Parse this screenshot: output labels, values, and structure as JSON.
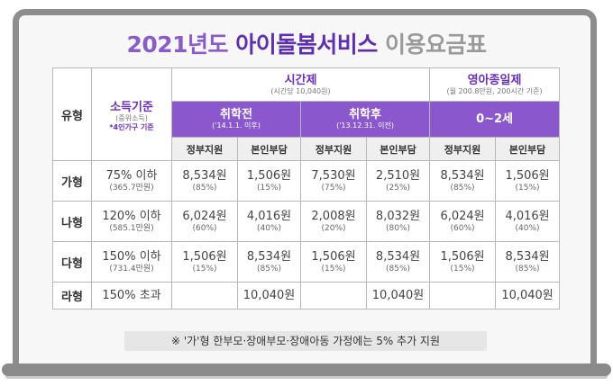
{
  "title": {
    "part1": "2021년도",
    "part2": "아이돌봄서비스",
    "part3": "이용요금표"
  },
  "headers": {
    "type": "유형",
    "income": {
      "label": "소득기준",
      "sub": "(중위소득)",
      "note": "*4인가구 기준"
    },
    "hourly": {
      "label": "시간제",
      "sub": "(시간당 10,040원)"
    },
    "infant": {
      "label": "영아종일제",
      "sub": "(월 200.8만원, 200시간 기준)"
    },
    "preschool": {
      "label": "취학전",
      "sub": "('14.1.1. 이후)"
    },
    "school": {
      "label": "취학후",
      "sub": "('13.12.31. 이전)"
    },
    "age": {
      "label": "0~2세"
    },
    "gov": "정부지원",
    "self": "본인부담"
  },
  "rows": [
    {
      "type": "가형",
      "income": "75% 이하",
      "income_sub": "(365.7만원)",
      "c1": "8,534원",
      "c1s": "(85%)",
      "c2": "1,506원",
      "c2s": "(15%)",
      "c3": "7,530원",
      "c3s": "(75%)",
      "c4": "2,510원",
      "c4s": "(25%)",
      "c5": "8,534원",
      "c5s": "(85%)",
      "c6": "1,506원",
      "c6s": "(15%)"
    },
    {
      "type": "나형",
      "income": "120% 이하",
      "income_sub": "(585.1만원)",
      "c1": "6,024원",
      "c1s": "(60%)",
      "c2": "4,016원",
      "c2s": "(40%)",
      "c3": "2,008원",
      "c3s": "(20%)",
      "c4": "8,032원",
      "c4s": "(80%)",
      "c5": "6,024원",
      "c5s": "(60%)",
      "c6": "4,016원",
      "c6s": "(40%)"
    },
    {
      "type": "다형",
      "income": "150% 이하",
      "income_sub": "(731.4만원)",
      "c1": "1,506원",
      "c1s": "(15%)",
      "c2": "8,534원",
      "c2s": "(85%)",
      "c3": "1,506원",
      "c3s": "(15%)",
      "c4": "8,534원",
      "c4s": "(85%)",
      "c5": "1,506원",
      "c5s": "(15%)",
      "c6": "8,534원",
      "c6s": "(85%)"
    },
    {
      "type": "라형",
      "income": "150% 초과",
      "c2": "10,040원",
      "c4": "10,040원",
      "c6": "10,040원"
    }
  ],
  "footnote": "※ '가'형 한부모·장애부모·장애아동 가정에는 5% 추가 지원"
}
